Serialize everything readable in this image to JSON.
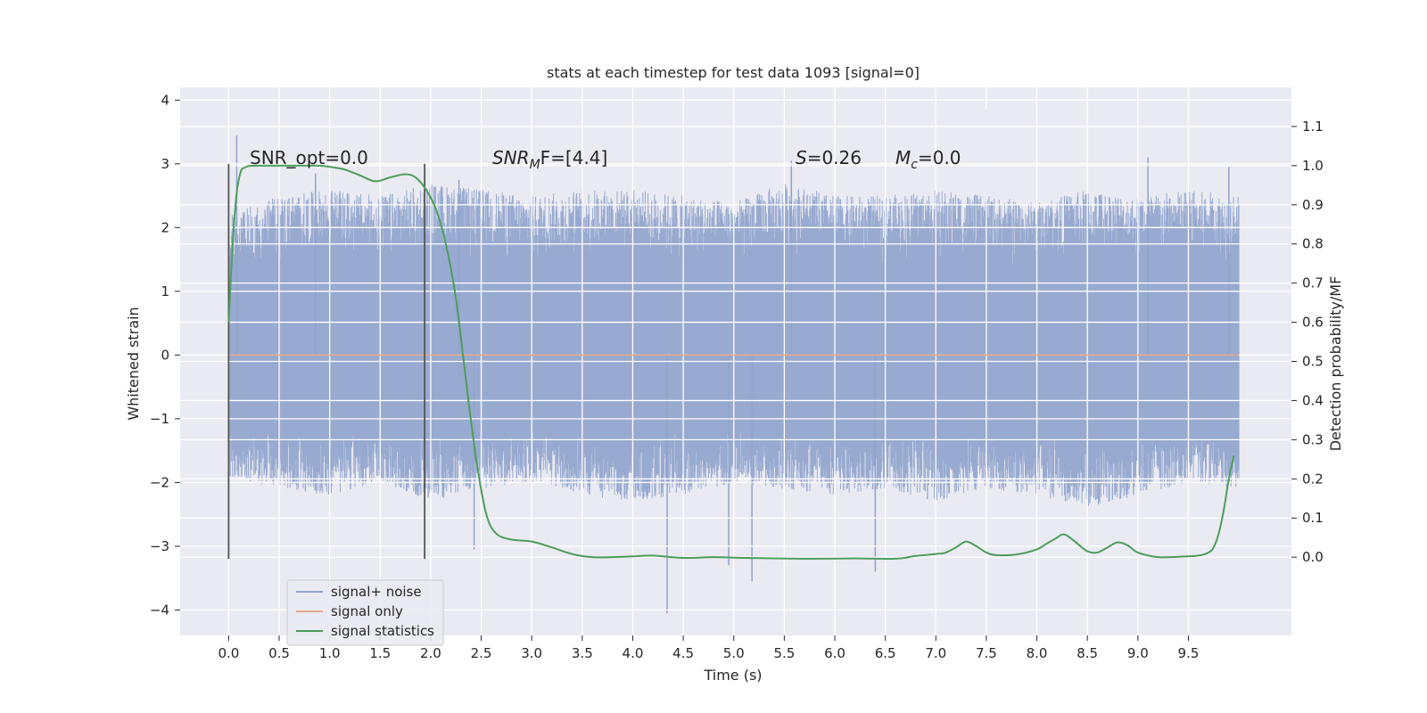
{
  "chart_data": {
    "type": "line",
    "title": "stats at each timestep for test data 1093 [signal=0]",
    "xlabel": "Time (s)",
    "ylabel": "Whitened strain",
    "y2label": "Detection probability/MF",
    "xlim": [
      -0.48,
      10.52
    ],
    "ylim": [
      -4.4,
      4.2
    ],
    "y2lim": [
      -0.2,
      1.2
    ],
    "x_ticks": [
      "0.0",
      "0.5",
      "1.0",
      "1.5",
      "2.0",
      "2.5",
      "3.0",
      "3.5",
      "4.0",
      "4.5",
      "5.0",
      "5.5",
      "6.0",
      "6.5",
      "7.0",
      "7.5",
      "8.0",
      "8.5",
      "9.0",
      "9.5"
    ],
    "y_ticks": [
      "4",
      "3",
      "2",
      "1",
      "0",
      "−1",
      "−2",
      "−3",
      "−4"
    ],
    "y2_ticks": [
      "1.1",
      "1.0",
      "0.9",
      "0.8",
      "0.7",
      "0.6",
      "0.5",
      "0.4",
      "0.3",
      "0.2",
      "0.1",
      "0.0"
    ],
    "grid": true,
    "legend_position": "lower-left",
    "annotations": {
      "snr_opt": "SNR_opt=0.0",
      "snr_mf_base": "SNR",
      "snr_mf_sub": "M",
      "snr_mf_rest": "F=[4.4]",
      "s_var": "S",
      "s_val": "=0.26",
      "mc_var": "M",
      "mc_sub": "c",
      "mc_val": "=0.0"
    },
    "window_lines_x": [
      0.0,
      1.94
    ],
    "series": [
      {
        "name": "signal+ noise",
        "color": "#8fa3cc",
        "x_range": [
          0.0,
          10.0
        ],
        "envelope_upper": [
          2.2,
          2.5,
          2.6,
          2.5,
          2.7,
          2.6,
          2.5,
          2.6,
          2.6,
          2.5,
          2.4,
          2.7,
          2.5,
          2.5,
          2.6,
          2.5,
          2.4,
          2.6,
          2.5,
          2.6,
          2.5
        ],
        "envelope_lower": [
          -1.9,
          -2.1,
          -2.2,
          -2.0,
          -2.3,
          -2.1,
          -2.0,
          -2.2,
          -2.3,
          -2.2,
          -2.0,
          -2.1,
          -2.2,
          -2.1,
          -2.3,
          -2.1,
          -2.2,
          -2.4,
          -2.2,
          -2.0,
          -2.1
        ],
        "peaks": [
          {
            "x": 0.08,
            "y": 3.45
          },
          {
            "x": 0.86,
            "y": 2.85
          },
          {
            "x": 2.28,
            "y": 2.75
          },
          {
            "x": 5.57,
            "y": 3.05
          },
          {
            "x": 7.5,
            "y": 3.85
          },
          {
            "x": 9.1,
            "y": 3.1
          },
          {
            "x": 9.9,
            "y": 2.95
          }
        ],
        "troughs": [
          {
            "x": 2.43,
            "y": -3.05
          },
          {
            "x": 4.34,
            "y": -4.05
          },
          {
            "x": 5.18,
            "y": -3.55
          },
          {
            "x": 6.4,
            "y": -3.4
          },
          {
            "x": 4.95,
            "y": -3.3
          }
        ]
      },
      {
        "name": "signal only",
        "color": "#e8a68a",
        "x": [
          0.0,
          10.0
        ],
        "y": [
          0.0,
          0.0
        ]
      },
      {
        "name": "signal statistics",
        "color": "#4c9e5a",
        "axis": "right",
        "x": [
          0.0,
          0.04,
          0.08,
          0.12,
          0.16,
          0.2,
          0.3,
          0.5,
          0.7,
          0.9,
          1.05,
          1.15,
          1.3,
          1.45,
          1.6,
          1.75,
          1.85,
          1.95,
          2.05,
          2.15,
          2.25,
          2.35,
          2.45,
          2.55,
          2.65,
          2.8,
          3.0,
          3.2,
          3.4,
          3.6,
          3.8,
          4.0,
          4.2,
          4.5,
          4.8,
          5.1,
          5.4,
          5.8,
          6.2,
          6.6,
          6.8,
          7.0,
          7.1,
          7.2,
          7.3,
          7.4,
          7.5,
          7.6,
          7.8,
          8.0,
          8.1,
          8.2,
          8.25,
          8.3,
          8.4,
          8.5,
          8.6,
          8.7,
          8.8,
          8.9,
          9.0,
          9.2,
          9.4,
          9.6,
          9.7,
          9.75,
          9.8,
          9.85,
          9.9,
          9.95
        ],
        "y": [
          0.6,
          0.8,
          0.93,
          0.985,
          0.995,
          0.999,
          1.0,
          1.0,
          1.0,
          1.0,
          0.995,
          0.99,
          0.975,
          0.96,
          0.97,
          0.978,
          0.97,
          0.94,
          0.89,
          0.8,
          0.66,
          0.45,
          0.25,
          0.11,
          0.06,
          0.045,
          0.04,
          0.025,
          0.008,
          0.0,
          0.0,
          0.002,
          0.004,
          -0.002,
          0.0,
          -0.002,
          -0.003,
          -0.004,
          -0.003,
          -0.004,
          0.003,
          0.008,
          0.012,
          0.025,
          0.04,
          0.028,
          0.012,
          0.005,
          0.007,
          0.02,
          0.035,
          0.05,
          0.058,
          0.055,
          0.035,
          0.015,
          0.012,
          0.025,
          0.038,
          0.03,
          0.012,
          0.0,
          0.001,
          0.004,
          0.012,
          0.025,
          0.06,
          0.12,
          0.2,
          0.26
        ]
      }
    ]
  }
}
